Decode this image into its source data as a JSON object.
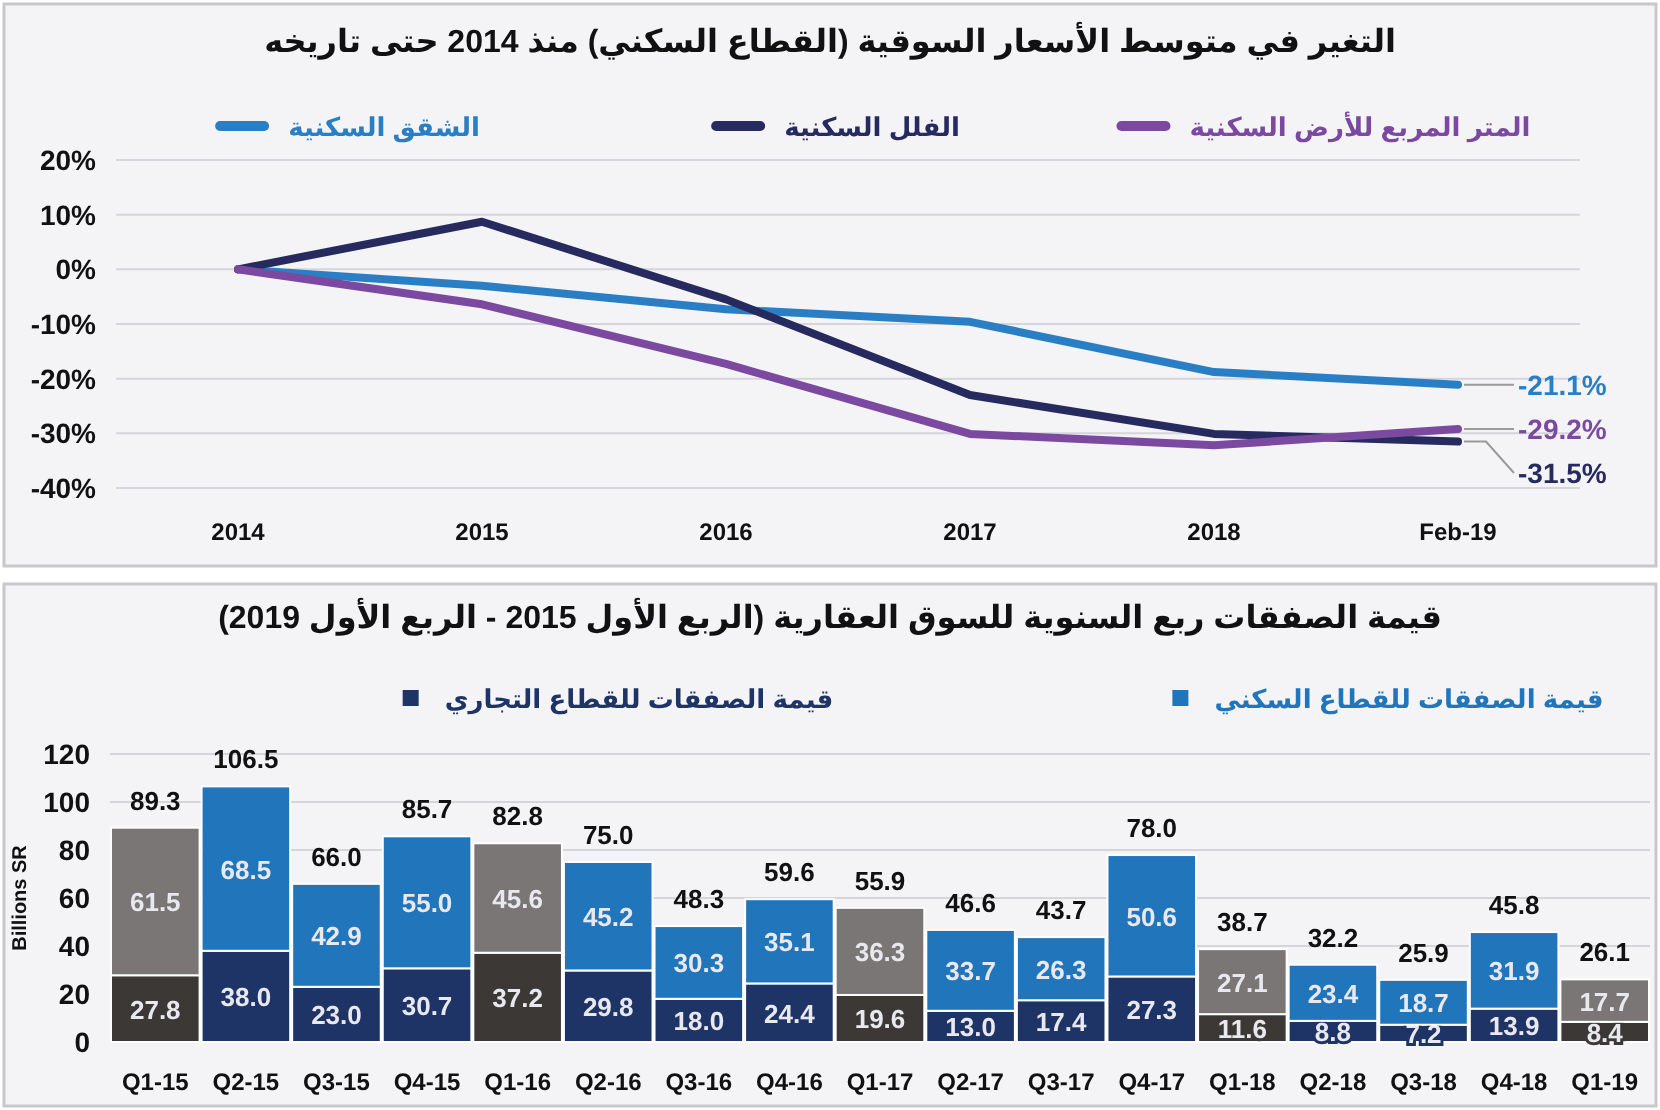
{
  "chart_data": [
    {
      "type": "line",
      "title": "التغير في متوسط الأسعار السوقية (القطاع السكني) منذ 2014 حتى تاريخه",
      "categories": [
        "2014",
        "2015",
        "2016",
        "2017",
        "2018",
        "Feb-19"
      ],
      "series": [
        {
          "name": "الشقق السكنية",
          "color": "#2a7fc4",
          "values": [
            0,
            -3,
            -7.3,
            -9.6,
            -18.8,
            -21.1
          ],
          "value_labels": [
            null,
            null,
            null,
            null,
            null,
            "-21.1%"
          ]
        },
        {
          "name": "الفلل السكنية",
          "color": "#262a5e",
          "values": [
            0,
            8.7,
            -5.5,
            -23,
            -30.1,
            -31.5
          ],
          "value_labels": [
            null,
            null,
            null,
            null,
            null,
            "-31.5%"
          ]
        },
        {
          "name": "المتر المربع للأرض السكنية",
          "color": "#7b4aa0",
          "values": [
            0,
            -6.4,
            -17.3,
            -30.1,
            -32.2,
            -29.2
          ],
          "value_labels": [
            null,
            null,
            null,
            null,
            null,
            "-29.2%"
          ]
        }
      ],
      "ylim": [
        -40,
        20
      ],
      "yticks": [
        {
          "value": -40,
          "label": "-40%"
        },
        {
          "value": -30,
          "label": "-30%"
        },
        {
          "value": -20,
          "label": "-20%"
        },
        {
          "value": -10,
          "label": "-10%"
        },
        {
          "value": 0,
          "label": "0%"
        },
        {
          "value": 10,
          "label": "10%"
        },
        {
          "value": 20,
          "label": "20%"
        }
      ],
      "grid": "y",
      "legend": "top"
    },
    {
      "type": "bar",
      "stacked": true,
      "title": "قيمة الصفقات ربع السنوية للسوق العقارية (الربع الأول 2015 - الربع الأول 2019)",
      "ylabel": "Billions SR",
      "categories": [
        "Q1-15",
        "Q2-15",
        "Q3-15",
        "Q4-15",
        "Q1-16",
        "Q2-16",
        "Q3-16",
        "Q4-16",
        "Q1-17",
        "Q2-17",
        "Q3-17",
        "Q4-17",
        "Q1-18",
        "Q2-18",
        "Q3-18",
        "Q4-18",
        "Q1-19"
      ],
      "series": [
        {
          "name": "قيمة الصفقات للقطاع التجاري",
          "color": "#1f3466",
          "colors": [
            "#3c3836",
            "#1f3466",
            "#1f3466",
            "#1f3466",
            "#3c3836",
            "#1f3466",
            "#1f3466",
            "#1f3466",
            "#3c3836",
            "#1f3466",
            "#1f3466",
            "#1f3466",
            "#3c3836",
            "#1f3466",
            "#1f3466",
            "#1f3466",
            "#3c3836"
          ],
          "values": [
            27.8,
            38.0,
            23.0,
            30.7,
            37.2,
            29.8,
            18.0,
            24.4,
            19.6,
            13.0,
            17.4,
            27.3,
            11.6,
            8.8,
            7.2,
            13.9,
            8.4
          ],
          "value_labels": [
            "27.8",
            "38.0",
            "23.0",
            "30.7",
            "37.2",
            "29.8",
            "18.0",
            "24.4",
            "19.6",
            "13.0",
            "17.4",
            "27.3",
            "11.6",
            "8.8",
            "7.2",
            "13.9",
            "8.4"
          ]
        },
        {
          "name": "قيمة الصفقات للقطاع السكني",
          "color": "#2176bb",
          "colors": [
            "#7a7676",
            "#2176bb",
            "#2176bb",
            "#2176bb",
            "#7a7676",
            "#2176bb",
            "#2176bb",
            "#2176bb",
            "#7a7676",
            "#2176bb",
            "#2176bb",
            "#2176bb",
            "#7a7676",
            "#2176bb",
            "#2176bb",
            "#2176bb",
            "#7a7676"
          ],
          "values": [
            61.5,
            68.5,
            42.9,
            55.0,
            45.6,
            45.2,
            30.3,
            35.1,
            36.3,
            33.7,
            26.3,
            50.6,
            27.1,
            23.4,
            18.7,
            31.9,
            17.7
          ],
          "value_labels": [
            "61.5",
            "68.5",
            "42.9",
            "55.0",
            "45.6",
            "45.2",
            "30.3",
            "35.1",
            "36.3",
            "33.7",
            "26.3",
            "50.6",
            "27.1",
            "23.4",
            "18.7",
            "31.9",
            "17.7"
          ]
        }
      ],
      "totals": [
        "89.3",
        "106.5",
        "66.0",
        "85.7",
        "82.8",
        "75.0",
        "48.3",
        "59.6",
        "55.9",
        "46.6",
        "43.7",
        "78.0",
        "38.7",
        "32.2",
        "25.9",
        "45.8",
        "26.1"
      ],
      "ylim": [
        0,
        120
      ],
      "yticks": [
        0,
        20,
        40,
        60,
        80,
        100,
        120
      ],
      "grid": "y",
      "legend": "top"
    }
  ]
}
